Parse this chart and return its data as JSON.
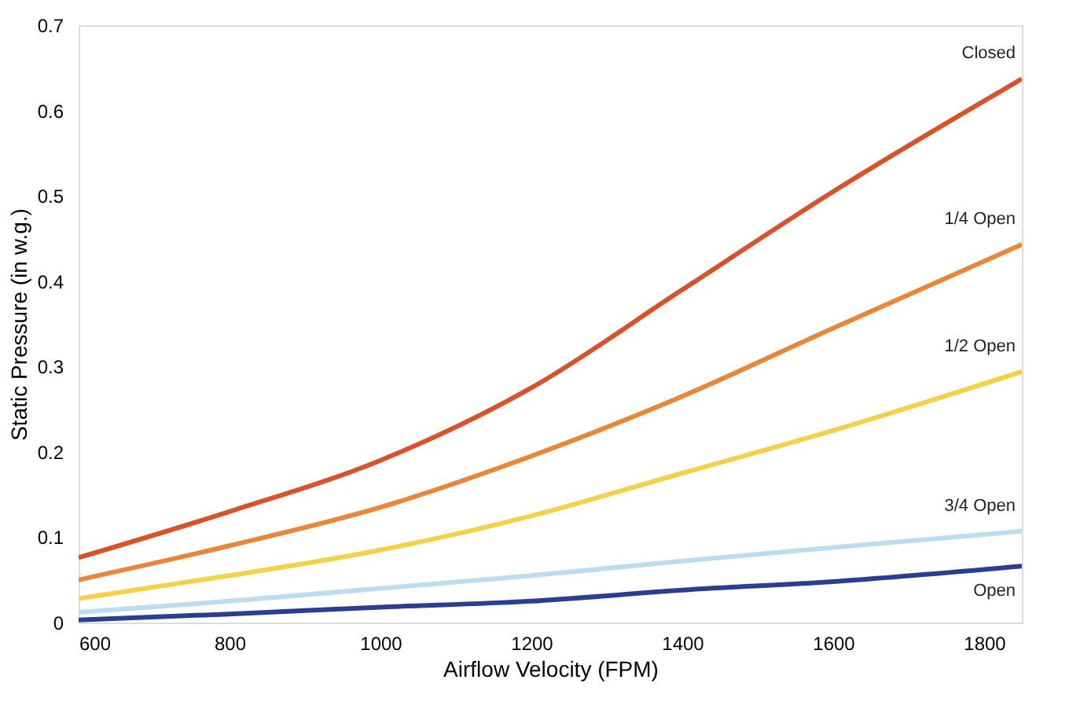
{
  "chart_data": {
    "type": "line",
    "xlabel": "Airflow Velocity (FPM)",
    "ylabel": "Static Pressure (in w.g.)",
    "x": [
      600,
      800,
      1000,
      1200,
      1400,
      1600,
      1850
    ],
    "series": [
      {
        "name": "Closed",
        "color": "#d9532a",
        "values": [
          0.076,
          0.13,
          0.19,
          0.275,
          0.39,
          0.505,
          0.637
        ]
      },
      {
        "name": "1/4 Open",
        "color": "#e8873a",
        "values": [
          0.05,
          0.09,
          0.135,
          0.195,
          0.265,
          0.345,
          0.443
        ]
      },
      {
        "name": "1/2 Open",
        "color": "#f3d24a",
        "values": [
          0.028,
          0.055,
          0.085,
          0.125,
          0.175,
          0.225,
          0.294
        ]
      },
      {
        "name": "3/4 Open",
        "color": "#bcdcef",
        "values": [
          0.012,
          0.025,
          0.04,
          0.055,
          0.072,
          0.088,
          0.107
        ]
      },
      {
        "name": "Open",
        "color": "#2a3f8f",
        "values": [
          0.003,
          0.01,
          0.018,
          0.025,
          0.038,
          0.048,
          0.066
        ]
      }
    ],
    "xlim": [
      600,
      1850
    ],
    "xticks": [
      600,
      800,
      1000,
      1200,
      1400,
      1600,
      1800
    ],
    "ylim": [
      0,
      0.7
    ],
    "yticks": [
      0,
      0.1,
      0.2,
      0.3,
      0.4,
      0.5,
      0.6,
      0.7
    ],
    "grid": false,
    "legend": false,
    "marker": "none",
    "line_style": "solid"
  }
}
